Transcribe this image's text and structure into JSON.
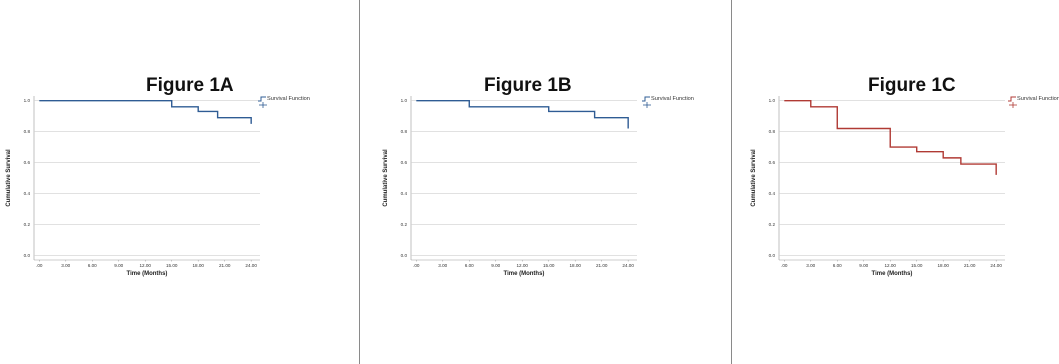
{
  "chart_data": [
    {
      "type": "line",
      "title": "Figure 1A",
      "xlabel": "Time (Months)",
      "ylabel": "Cumulative Survival",
      "xticks": [
        ".00",
        "3.00",
        "6.00",
        "9.00",
        "12.00",
        "15.00",
        "18.00",
        "21.00",
        "24.00"
      ],
      "yticks": [
        "0.0",
        "0.2",
        "0.4",
        "0.6",
        "0.8",
        "1.0"
      ],
      "xlim": [
        -0.6,
        25
      ],
      "ylim": [
        -0.03,
        1.03
      ],
      "grid": "horizontal",
      "legend_position": "top-right",
      "color": "#2f5c94",
      "series": [
        {
          "name": "Survival Function",
          "x": [
            0,
            15,
            18,
            20.2,
            24
          ],
          "y": [
            1.0,
            0.96,
            0.93,
            0.89,
            0.85
          ]
        }
      ]
    },
    {
      "type": "line",
      "title": "Figure 1B",
      "xlabel": "Time (Months)",
      "ylabel": "Cumulative Survival",
      "xticks": [
        ".00",
        "3.00",
        "6.00",
        "9.00",
        "12.00",
        "15.00",
        "18.00",
        "21.00",
        "24.00"
      ],
      "yticks": [
        "0.0",
        "0.2",
        "0.4",
        "0.6",
        "0.8",
        "1.0"
      ],
      "xlim": [
        -0.6,
        25
      ],
      "ylim": [
        -0.03,
        1.03
      ],
      "grid": "horizontal",
      "legend_position": "top-right",
      "color": "#2f5c94",
      "series": [
        {
          "name": "Survival Function",
          "x": [
            0,
            6,
            15,
            20.2,
            24
          ],
          "y": [
            1.0,
            0.96,
            0.93,
            0.89,
            0.82
          ]
        }
      ]
    },
    {
      "type": "line",
      "title": "Figure 1C",
      "xlabel": "Time (Months)",
      "ylabel": "Cumulative Survival",
      "xticks": [
        ".00",
        "3.00",
        "6.00",
        "9.00",
        "12.00",
        "15.00",
        "18.00",
        "21.00",
        "24.00"
      ],
      "yticks": [
        "0.0",
        "0.2",
        "0.4",
        "0.6",
        "0.8",
        "1.0"
      ],
      "xlim": [
        -0.6,
        25
      ],
      "ylim": [
        -0.03,
        1.03
      ],
      "grid": "horizontal",
      "legend_position": "top-right",
      "color": "#b03a34",
      "series": [
        {
          "name": "Survival Function",
          "x": [
            0,
            3,
            6,
            12,
            15,
            18,
            20,
            24
          ],
          "y": [
            1.0,
            0.96,
            0.82,
            0.7,
            0.67,
            0.63,
            0.59,
            0.52
          ]
        }
      ]
    }
  ]
}
